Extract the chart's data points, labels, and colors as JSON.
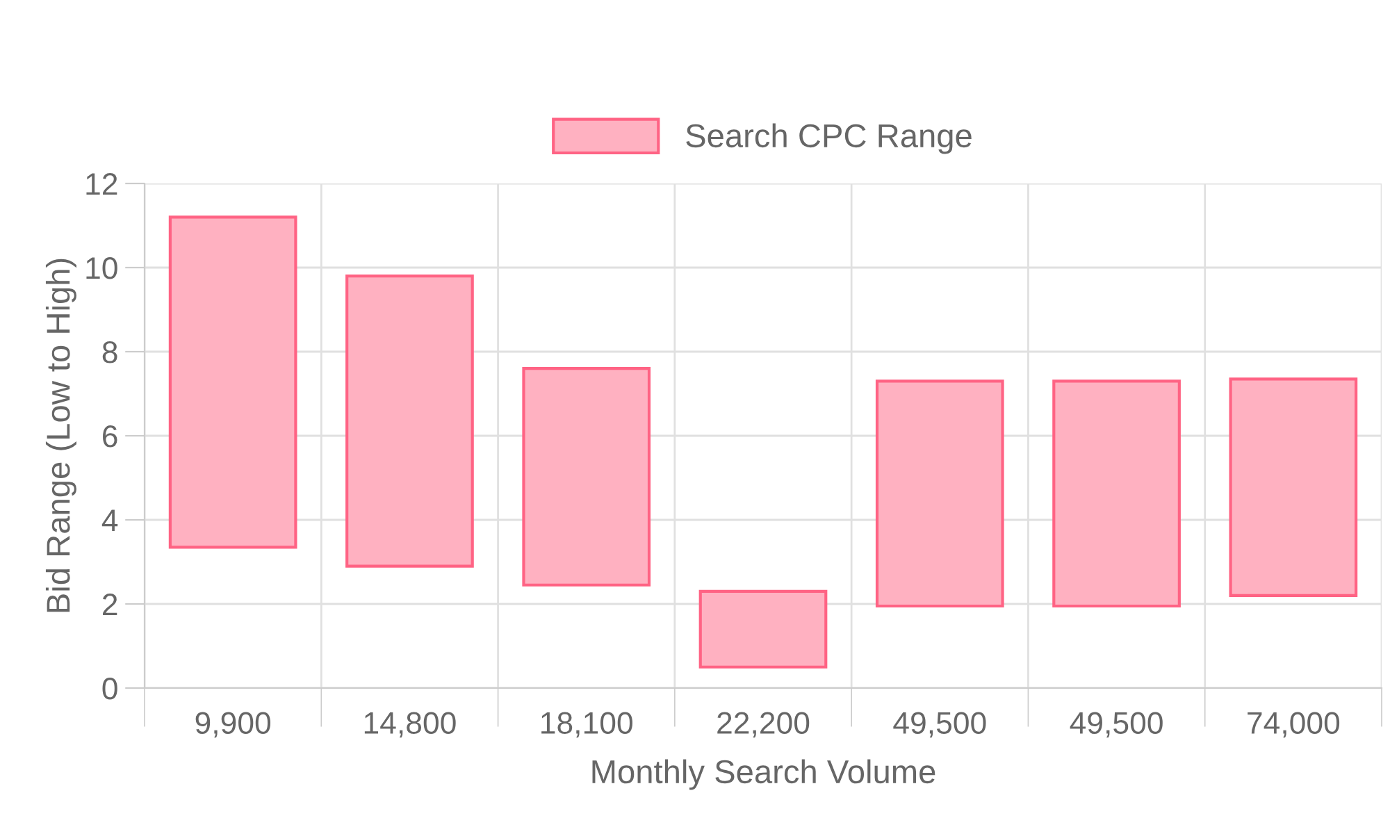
{
  "chart_data": {
    "type": "bar",
    "xlabel": "Monthly Search Volume",
    "ylabel": "Bid Range (Low to High)",
    "categories": [
      "9,900",
      "14,800",
      "18,100",
      "22,200",
      "49,500",
      "49,500",
      "74,000"
    ],
    "series": [
      {
        "name": "Search CPC Range",
        "color": "#ffb1c1",
        "base": [
          3.35,
          2.9,
          2.45,
          0.5,
          1.95,
          1.95,
          2.2
        ],
        "values": [
          7.85,
          6.9,
          5.15,
          1.8,
          5.35,
          5.35,
          5.15
        ]
      }
    ],
    "ylim": [
      0,
      12
    ],
    "yticks": [
      0,
      2,
      4,
      6,
      8,
      10,
      12
    ],
    "grid": true,
    "legend": "top"
  }
}
